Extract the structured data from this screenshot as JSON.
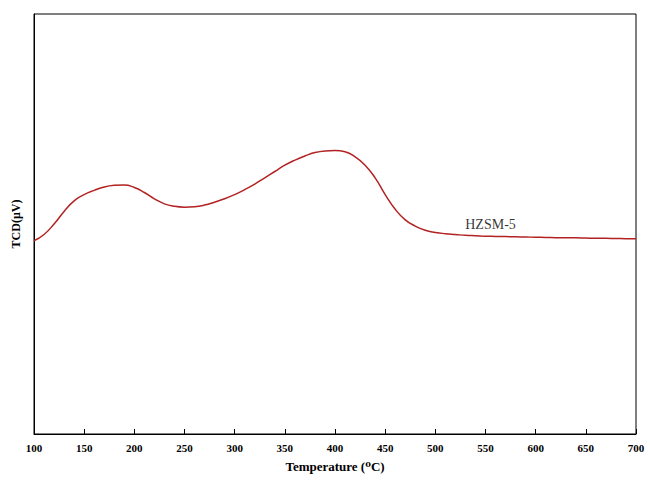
{
  "chart_data": {
    "type": "line",
    "x_label": "Temperature (⁰C)",
    "y_label": "TCD(μV)",
    "x": [
      100,
      110,
      120,
      130,
      140,
      150,
      160,
      170,
      180,
      190,
      200,
      210,
      220,
      230,
      240,
      250,
      260,
      270,
      280,
      290,
      300,
      310,
      320,
      330,
      340,
      350,
      360,
      370,
      380,
      390,
      400,
      410,
      420,
      430,
      440,
      450,
      460,
      470,
      480,
      490,
      500,
      510,
      520,
      530,
      540,
      550,
      560,
      570,
      580,
      590,
      600,
      610,
      620,
      630,
      640,
      650,
      660,
      670,
      680,
      690,
      700
    ],
    "series": [
      {
        "name": "HZSM-5",
        "color": "#b22222",
        "values": [
          46,
          47.5,
          50,
          53,
          55.5,
          57,
          58,
          58.8,
          59.2,
          59.3,
          58.7,
          57.5,
          56,
          54.8,
          54.2,
          54,
          54.1,
          54.5,
          55.2,
          56,
          57,
          58.2,
          59.5,
          61,
          62.5,
          64,
          65.2,
          66.2,
          67,
          67.4,
          67.5,
          67.2,
          66,
          64,
          61,
          57,
          53.5,
          51,
          49.5,
          48.5,
          48,
          47.7,
          47.5,
          47.3,
          47.2,
          47.1,
          47.05,
          47,
          46.95,
          46.9,
          46.85,
          46.8,
          46.75,
          46.7,
          46.7,
          46.65,
          46.6,
          46.6,
          46.55,
          46.5,
          46.5
        ]
      }
    ],
    "annotations": [
      {
        "text": "HZSM-5",
        "x": 555,
        "y": 50
      }
    ],
    "xlim": [
      100,
      700
    ],
    "xticks": [
      100,
      150,
      200,
      250,
      300,
      350,
      400,
      450,
      500,
      550,
      600,
      650,
      700
    ],
    "ylim": [
      0,
      100
    ],
    "tick_labels": "x",
    "grid": false
  }
}
